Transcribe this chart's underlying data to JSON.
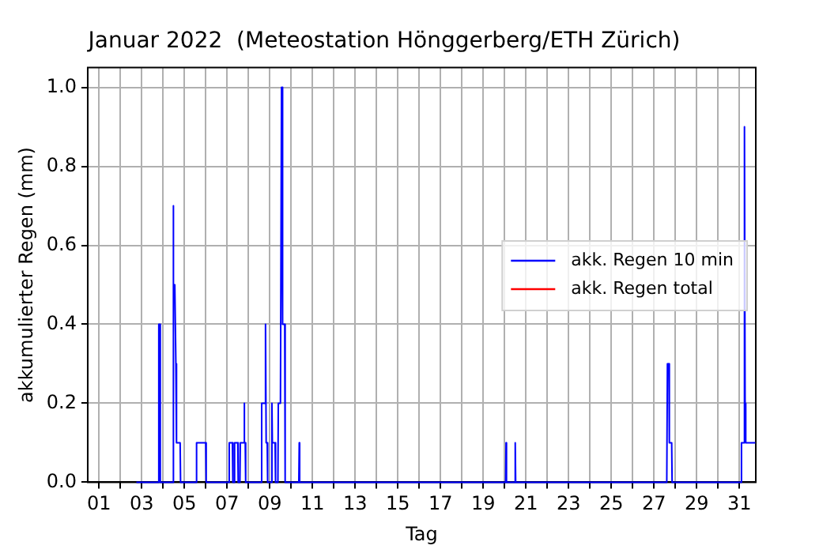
{
  "chart_data": {
    "type": "line",
    "title": "Januar 2022  (Meteostation Hönggerberg/ETH Zürich)",
    "xlabel": "Tag",
    "ylabel": "akkumulierter Regen (mm)",
    "xlim": [
      0.47,
      31.77
    ],
    "xticks": [
      {
        "value": 1,
        "label": "01"
      },
      {
        "value": 2,
        "label": null
      },
      {
        "value": 3,
        "label": "03"
      },
      {
        "value": 4,
        "label": null
      },
      {
        "value": 5,
        "label": "05"
      },
      {
        "value": 6,
        "label": null
      },
      {
        "value": 7,
        "label": "07"
      },
      {
        "value": 8,
        "label": null
      },
      {
        "value": 9,
        "label": "09"
      },
      {
        "value": 10,
        "label": null
      },
      {
        "value": 11,
        "label": "11"
      },
      {
        "value": 12,
        "label": null
      },
      {
        "value": 13,
        "label": "13"
      },
      {
        "value": 14,
        "label": null
      },
      {
        "value": 15,
        "label": "15"
      },
      {
        "value": 16,
        "label": null
      },
      {
        "value": 17,
        "label": "17"
      },
      {
        "value": 18,
        "label": null
      },
      {
        "value": 19,
        "label": "19"
      },
      {
        "value": 20,
        "label": null
      },
      {
        "value": 21,
        "label": "21"
      },
      {
        "value": 22,
        "label": null
      },
      {
        "value": 23,
        "label": "23"
      },
      {
        "value": 24,
        "label": null
      },
      {
        "value": 25,
        "label": "25"
      },
      {
        "value": 26,
        "label": null
      },
      {
        "value": 27,
        "label": "27"
      },
      {
        "value": 28,
        "label": null
      },
      {
        "value": 29,
        "label": "29"
      },
      {
        "value": 30,
        "label": null
      },
      {
        "value": 31,
        "label": "31"
      }
    ],
    "ylim": [
      0,
      1.05
    ],
    "yticks": [
      {
        "value": 0,
        "label": "0.0"
      },
      {
        "value": 0.2,
        "label": "0.2"
      },
      {
        "value": 0.4,
        "label": "0.4"
      },
      {
        "value": 0.6,
        "label": "0.6"
      },
      {
        "value": 0.8,
        "label": "0.8"
      },
      {
        "value": 1,
        "label": "1.0"
      }
    ],
    "grid": true,
    "legend": "right",
    "marker": "none",
    "line_style": "solid",
    "series": [
      {
        "name": "akk. Regen 10 min",
        "color": "#0000ff",
        "x": [
          2.75,
          3.78,
          3.8,
          3.85,
          3.87,
          4.45,
          4.47,
          4.5,
          4.55,
          4.6,
          4.63,
          4.8,
          4.82,
          5.55,
          5.57,
          6.0,
          6.02,
          7.08,
          7.1,
          7.25,
          7.27,
          7.33,
          7.35,
          7.5,
          7.52,
          7.6,
          7.62,
          7.78,
          7.8,
          7.82,
          7.85,
          7.87,
          8.6,
          8.62,
          8.77,
          8.8,
          8.83,
          8.88,
          8.9,
          9.08,
          9.1,
          9.12,
          9.25,
          9.27,
          9.38,
          9.4,
          9.5,
          9.55,
          9.6,
          9.7,
          9.72,
          10.36,
          10.38,
          10.4,
          20.05,
          20.07,
          20.09,
          20.48,
          20.5,
          20.52,
          27.6,
          27.63,
          27.7,
          27.72,
          27.83,
          27.85,
          31.08,
          31.1,
          31.22,
          31.24,
          31.27,
          31.3,
          31.75
        ],
        "values": [
          0,
          0,
          0.4,
          0.4,
          0,
          0,
          0.7,
          0.5,
          0.5,
          0.3,
          0.1,
          0.1,
          0,
          0,
          0.1,
          0.1,
          0,
          0,
          0.1,
          0.1,
          0,
          0,
          0.1,
          0.1,
          0,
          0,
          0.1,
          0.1,
          0.2,
          0.1,
          0.1,
          0,
          0,
          0.2,
          0.2,
          0.4,
          0.1,
          0.1,
          0,
          0,
          0.2,
          0.1,
          0.1,
          0,
          0,
          0.2,
          0.2,
          1.0,
          0.4,
          0.4,
          0,
          0,
          0.1,
          0,
          0,
          0.1,
          0,
          0,
          0.1,
          0,
          0,
          0.3,
          0.3,
          0.1,
          0.1,
          0,
          0,
          0.1,
          0.1,
          0.9,
          0.2,
          0.1,
          0.1
        ]
      },
      {
        "name": "akk. Regen total",
        "color": "#ff0000"
      }
    ]
  }
}
